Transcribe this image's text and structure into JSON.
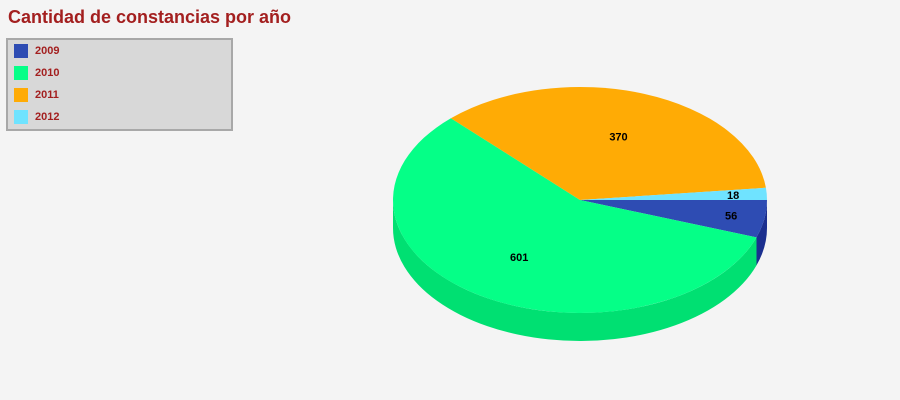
{
  "chart_data": {
    "type": "pie",
    "title": "Cantidad de constancias por año",
    "legend_position": "top-left",
    "categories": [
      "2009",
      "2010",
      "2011",
      "2012"
    ],
    "values": [
      56,
      601,
      370,
      18
    ],
    "colors": [
      "#2e4cb3",
      "#05ff87",
      "#ffab05",
      "#6fe3ff"
    ],
    "side_colors": [
      "#1b2f8f",
      "#00e072",
      "#e08f00",
      "#4fc3e0"
    ],
    "three_d": true
  }
}
